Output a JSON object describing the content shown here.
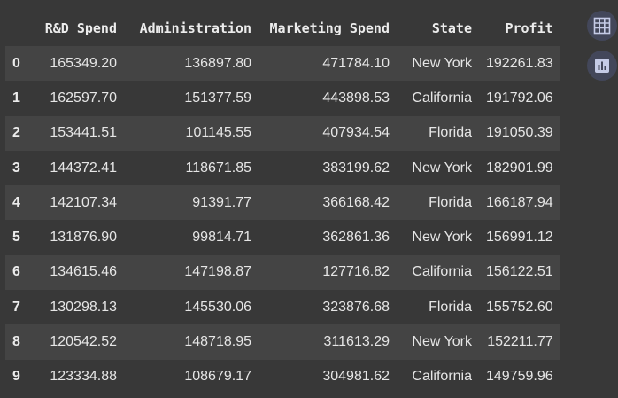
{
  "table": {
    "columns": [
      "",
      "R&D Spend",
      "Administration",
      "Marketing Spend",
      "State",
      "Profit"
    ],
    "rows": [
      [
        "0",
        "165349.20",
        "136897.80",
        "471784.10",
        "New York",
        "192261.83"
      ],
      [
        "1",
        "162597.70",
        "151377.59",
        "443898.53",
        "California",
        "191792.06"
      ],
      [
        "2",
        "153441.51",
        "101145.55",
        "407934.54",
        "Florida",
        "191050.39"
      ],
      [
        "3",
        "144372.41",
        "118671.85",
        "383199.62",
        "New York",
        "182901.99"
      ],
      [
        "4",
        "142107.34",
        "91391.77",
        "366168.42",
        "Florida",
        "166187.94"
      ],
      [
        "5",
        "131876.90",
        "99814.71",
        "362861.36",
        "New York",
        "156991.12"
      ],
      [
        "6",
        "134615.46",
        "147198.87",
        "127716.82",
        "California",
        "156122.51"
      ],
      [
        "7",
        "130298.13",
        "145530.06",
        "323876.68",
        "Florida",
        "155752.60"
      ],
      [
        "8",
        "120542.52",
        "148718.95",
        "311613.29",
        "New York",
        "152211.77"
      ],
      [
        "9",
        "123334.88",
        "108679.17",
        "304981.62",
        "California",
        "149759.96"
      ]
    ]
  },
  "side_buttons": [
    {
      "icon": "table-icon"
    },
    {
      "icon": "bar-chart-icon"
    }
  ],
  "colors": {
    "background": "#383838",
    "row_stripe": "#444444",
    "button_bg": "#43475a",
    "icon": "#c5cbe6"
  }
}
